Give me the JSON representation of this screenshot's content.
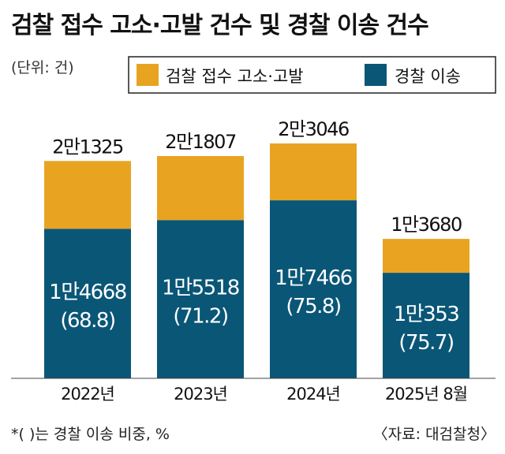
{
  "colors": {
    "complaints": "#E8A321",
    "transfers": "#0A5677"
  },
  "chart_data": {
    "type": "bar",
    "stacked": true,
    "title": "검찰 접수 고소·고발 건수 및 경찰 이송 건수",
    "unit": "(단위: 건)",
    "legend": {
      "complaints": "검찰 접수 고소·고발",
      "transfers": "경찰 이송"
    },
    "categories": [
      "2022년",
      "2023년",
      "2024년",
      "2025년 8월"
    ],
    "totals": [
      21325,
      21807,
      23046,
      13680
    ],
    "total_labels": [
      "2만1325",
      "2만1807",
      "2만3046",
      "1만3680"
    ],
    "transfers": [
      14668,
      15518,
      17466,
      10353
    ],
    "transfer_labels": [
      "1만4668",
      "1만5518",
      "1만7466",
      "1만353"
    ],
    "transfer_ratio": [
      68.8,
      71.2,
      75.8,
      75.7
    ],
    "transfer_ratio_labels": [
      "(68.8)",
      "(71.2)",
      "(75.8)",
      "(75.7)"
    ],
    "footnote": "*(  )는 경찰 이송 비중, %",
    "source": "〈자료: 대검찰청〉"
  }
}
